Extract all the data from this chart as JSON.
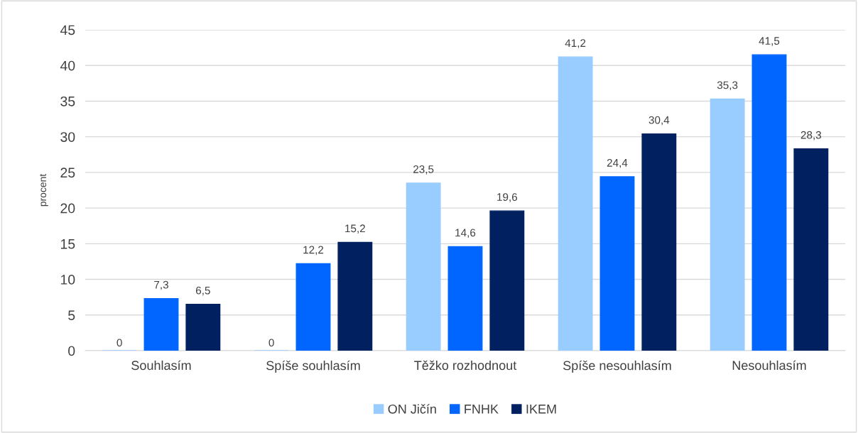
{
  "chart_data": {
    "type": "bar",
    "ylabel": "procent",
    "categories": [
      "Souhlasím",
      "Spíše souhlasím",
      "Těžko rozhodnout",
      "Spíše nesouhlasím",
      "Nesouhlasím"
    ],
    "series": [
      {
        "name": "ON Jičín",
        "color": "#99ccff",
        "values": [
          0,
          0,
          23.5,
          41.2,
          35.3
        ],
        "value_labels": [
          "0",
          "0",
          "23,5",
          "41,2",
          "35,3"
        ]
      },
      {
        "name": "FNHK",
        "color": "#0066ff",
        "values": [
          7.3,
          12.2,
          14.6,
          24.4,
          41.5
        ],
        "value_labels": [
          "7,3",
          "12,2",
          "14,6",
          "24,4",
          "41,5"
        ]
      },
      {
        "name": "IKEM",
        "color": "#002060",
        "values": [
          6.5,
          15.2,
          19.6,
          30.4,
          28.3
        ],
        "value_labels": [
          "6,5",
          "15,2",
          "19,6",
          "30,4",
          "28,3"
        ]
      }
    ],
    "ylim": [
      0,
      45
    ],
    "yticks": [
      0,
      5,
      10,
      15,
      20,
      25,
      30,
      35,
      40,
      45
    ],
    "grid": "y",
    "legend": "bottom"
  }
}
